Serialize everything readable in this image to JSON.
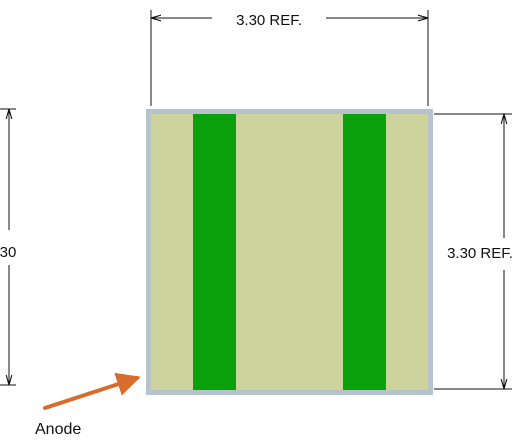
{
  "dimensions": {
    "top_width_label": "3.30 REF.",
    "right_height_label": "3.30 REF.",
    "left_height_label": "30"
  },
  "callout": {
    "label": "Anode"
  },
  "colors": {
    "package_border": "#b7c3cc",
    "package_body": "#cdd39c",
    "contact_stripe": "#0aa10d",
    "callout_arrow": "#d86c2b",
    "dimension_line": "#111111"
  }
}
